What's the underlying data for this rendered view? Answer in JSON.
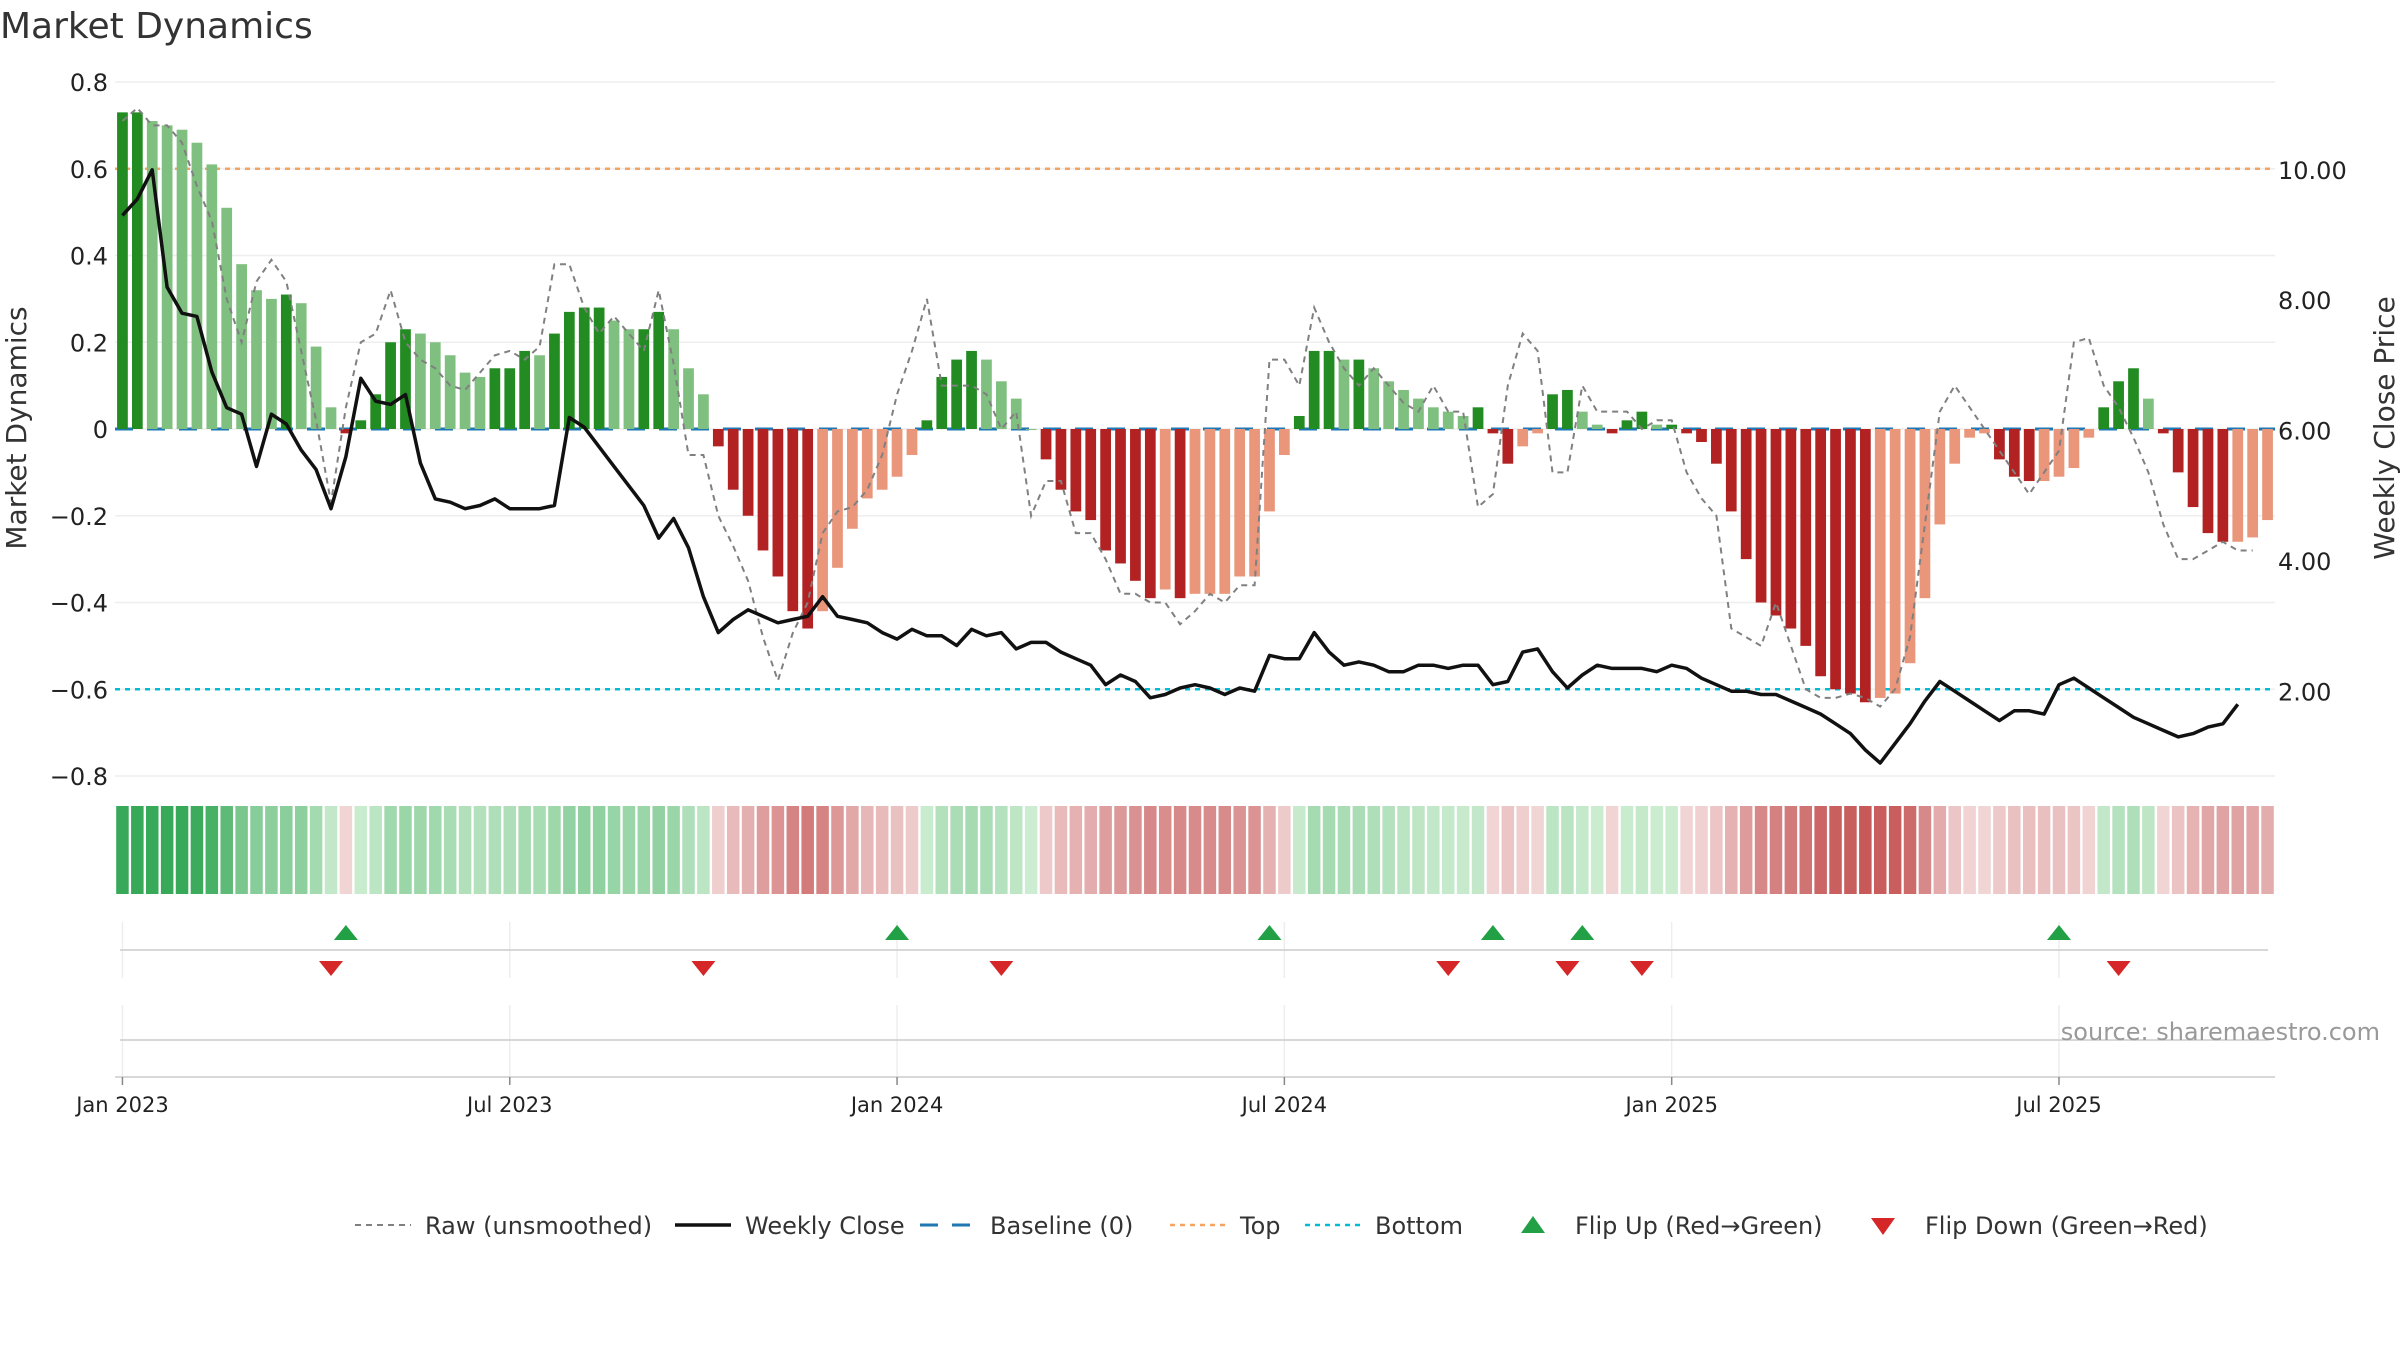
{
  "chart_data": {
    "type": "bar",
    "title": "Market Dynamics",
    "ylabel_left": "Market Dynamics",
    "ylabel_right": "Weekly Close Price",
    "ylim_left": [
      -0.8,
      0.8
    ],
    "ylim_right": [
      0.5,
      11.0
    ],
    "yticks_left": [
      0.8,
      0.6,
      0.4,
      0.2,
      0,
      -0.2,
      -0.4,
      -0.6,
      -0.8
    ],
    "yticks_left_labels": [
      "0.8",
      "0.6",
      "0.4",
      "0.2",
      "0",
      "−0.2",
      "−0.4",
      "−0.6",
      "−0.8"
    ],
    "yticks_right": [
      10,
      8,
      6,
      4,
      2
    ],
    "yticks_right_labels": [
      "10.00",
      "8.00",
      "6.00",
      "4.00",
      "2.00"
    ],
    "x_start_week": "2022-12-26",
    "x_ticks": [
      {
        "week": 1,
        "label": "Jan 2023"
      },
      {
        "week": 27,
        "label": "Jul 2023"
      },
      {
        "week": 53,
        "label": "Jan 2024"
      },
      {
        "week": 79,
        "label": "Jul 2024"
      },
      {
        "week": 105,
        "label": "Jan 2025"
      },
      {
        "week": 131,
        "label": "Jul 2025"
      }
    ],
    "top_level": 0.6,
    "bottom_level": -0.6,
    "baseline": 0,
    "smoothed": [
      0.73,
      0.73,
      0.71,
      0.7,
      0.69,
      0.66,
      0.61,
      0.51,
      0.38,
      0.32,
      0.3,
      0.31,
      0.29,
      0.19,
      0.05,
      -0.01,
      0.02,
      0.08,
      0.2,
      0.23,
      0.22,
      0.2,
      0.17,
      0.13,
      0.12,
      0.14,
      0.14,
      0.18,
      0.17,
      0.22,
      0.27,
      0.28,
      0.28,
      0.25,
      0.23,
      0.23,
      0.27,
      0.23,
      0.14,
      0.08,
      -0.04,
      -0.14,
      -0.2,
      -0.28,
      -0.34,
      -0.42,
      -0.46,
      -0.42,
      -0.32,
      -0.23,
      -0.16,
      -0.14,
      -0.11,
      -0.06,
      0.02,
      0.12,
      0.16,
      0.18,
      0.16,
      0.11,
      0.07,
      0.0,
      -0.07,
      -0.14,
      -0.19,
      -0.21,
      -0.28,
      -0.31,
      -0.35,
      -0.39,
      -0.37,
      -0.39,
      -0.38,
      -0.38,
      -0.38,
      -0.34,
      -0.34,
      -0.19,
      -0.06,
      0.03,
      0.18,
      0.18,
      0.16,
      0.16,
      0.14,
      0.11,
      0.09,
      0.07,
      0.05,
      0.04,
      0.03,
      0.05,
      -0.01,
      -0.08,
      -0.04,
      -0.01,
      0.08,
      0.09,
      0.04,
      0.01,
      -0.01,
      0.02,
      0.04,
      0.01,
      0.01,
      -0.01,
      -0.03,
      -0.08,
      -0.19,
      -0.3,
      -0.4,
      -0.43,
      -0.46,
      -0.5,
      -0.57,
      -0.6,
      -0.61,
      -0.63,
      -0.62,
      -0.61,
      -0.54,
      -0.39,
      -0.22,
      -0.08,
      -0.02,
      -0.01,
      -0.07,
      -0.11,
      -0.12,
      -0.12,
      -0.11,
      -0.09,
      -0.02,
      0.05,
      0.11,
      0.14,
      0.07,
      -0.01,
      -0.1,
      -0.18,
      -0.24,
      -0.26,
      -0.26,
      -0.25,
      -0.21
    ],
    "raw": [
      0.71,
      0.74,
      0.7,
      0.7,
      0.66,
      0.56,
      0.48,
      0.3,
      0.2,
      0.34,
      0.39,
      0.34,
      0.18,
      0.02,
      -0.17,
      0.05,
      0.2,
      0.22,
      0.32,
      0.2,
      0.16,
      0.14,
      0.1,
      0.09,
      0.13,
      0.17,
      0.18,
      0.16,
      0.19,
      0.38,
      0.38,
      0.28,
      0.22,
      0.26,
      0.22,
      0.18,
      0.32,
      0.15,
      -0.06,
      -0.06,
      -0.2,
      -0.27,
      -0.35,
      -0.48,
      -0.58,
      -0.47,
      -0.4,
      -0.24,
      -0.19,
      -0.18,
      -0.14,
      -0.06,
      0.08,
      0.18,
      0.3,
      0.1,
      0.1,
      0.1,
      0.08,
      0.0,
      0.04,
      -0.2,
      -0.12,
      -0.12,
      -0.24,
      -0.24,
      -0.3,
      -0.38,
      -0.38,
      -0.4,
      -0.4,
      -0.45,
      -0.42,
      -0.38,
      -0.4,
      -0.36,
      -0.36,
      0.16,
      0.16,
      0.1,
      0.28,
      0.2,
      0.14,
      0.1,
      0.14,
      0.1,
      0.06,
      0.04,
      0.1,
      0.04,
      0.04,
      -0.18,
      -0.15,
      0.1,
      0.22,
      0.18,
      -0.1,
      -0.1,
      0.1,
      0.04,
      0.04,
      0.04,
      0.0,
      0.02,
      0.02,
      -0.1,
      -0.16,
      -0.2,
      -0.46,
      -0.48,
      -0.5,
      -0.4,
      -0.5,
      -0.6,
      -0.62,
      -0.62,
      -0.61,
      -0.62,
      -0.64,
      -0.6,
      -0.48,
      -0.22,
      0.04,
      0.1,
      0.05,
      0.0,
      -0.05,
      -0.1,
      -0.15,
      -0.1,
      -0.05,
      0.2,
      0.21,
      0.1,
      0.05,
      -0.02,
      -0.1,
      -0.22,
      -0.3,
      -0.3,
      -0.28,
      -0.26,
      -0.28,
      -0.28
    ],
    "close": [
      9.3,
      9.55,
      10.0,
      8.2,
      7.8,
      7.75,
      6.9,
      6.35,
      6.25,
      5.45,
      6.25,
      6.1,
      5.7,
      5.4,
      4.8,
      5.6,
      6.8,
      6.45,
      6.4,
      6.55,
      5.5,
      4.95,
      4.9,
      4.8,
      4.85,
      4.95,
      4.8,
      4.8,
      4.8,
      4.85,
      6.2,
      6.05,
      5.75,
      5.45,
      5.15,
      4.85,
      4.35,
      4.65,
      4.2,
      3.45,
      2.9,
      3.1,
      3.25,
      3.15,
      3.05,
      3.1,
      3.15,
      3.45,
      3.15,
      3.1,
      3.05,
      2.9,
      2.8,
      2.95,
      2.85,
      2.85,
      2.7,
      2.95,
      2.85,
      2.9,
      2.65,
      2.75,
      2.75,
      2.6,
      2.5,
      2.4,
      2.1,
      2.25,
      2.15,
      1.9,
      1.95,
      2.05,
      2.1,
      2.05,
      1.95,
      2.05,
      2.0,
      2.55,
      2.5,
      2.5,
      2.9,
      2.6,
      2.4,
      2.45,
      2.4,
      2.3,
      2.3,
      2.4,
      2.4,
      2.35,
      2.4,
      2.4,
      2.1,
      2.15,
      2.6,
      2.65,
      2.3,
      2.05,
      2.25,
      2.4,
      2.35,
      2.35,
      2.35,
      2.3,
      2.4,
      2.35,
      2.2,
      2.1,
      2.0,
      2.0,
      1.95,
      1.95,
      1.85,
      1.75,
      1.65,
      1.5,
      1.35,
      1.1,
      0.9,
      1.2,
      1.5,
      1.85,
      2.15,
      2.0,
      1.85,
      1.7,
      1.55,
      1.7,
      1.7,
      1.65,
      2.1,
      2.2,
      2.05,
      1.9,
      1.75,
      1.6,
      1.5,
      1.4,
      1.3,
      1.35,
      1.45,
      1.5,
      1.8
    ],
    "flip_up_weeks": [
      15,
      52,
      77,
      92,
      98,
      130
    ],
    "flip_down_weeks": [
      14,
      39,
      59,
      89,
      97,
      102,
      134
    ],
    "colors": {
      "strong_green": "#228b22",
      "light_green": "#7fbf7f",
      "strong_red": "#b22222",
      "light_red": "#e9967a",
      "raw_line": "#808080",
      "close_line": "#111111",
      "baseline": "#1f77b4",
      "top": "#f4a460",
      "bottom": "#00bcd4",
      "flip_up": "#22a046",
      "flip_down": "#d62728"
    },
    "legend": [
      {
        "key": "raw",
        "label": "Raw (unsmoothed)"
      },
      {
        "key": "close",
        "label": "Weekly Close"
      },
      {
        "key": "baseline",
        "label": "Baseline (0)"
      },
      {
        "key": "top",
        "label": "Top"
      },
      {
        "key": "bottom",
        "label": "Bottom"
      },
      {
        "key": "flip_up",
        "label": "Flip Up (Red→Green)"
      },
      {
        "key": "flip_down",
        "label": "Flip Down (Green→Red)"
      }
    ],
    "legend_position": "bottom-center",
    "source": "source: sharemaestro.com"
  }
}
